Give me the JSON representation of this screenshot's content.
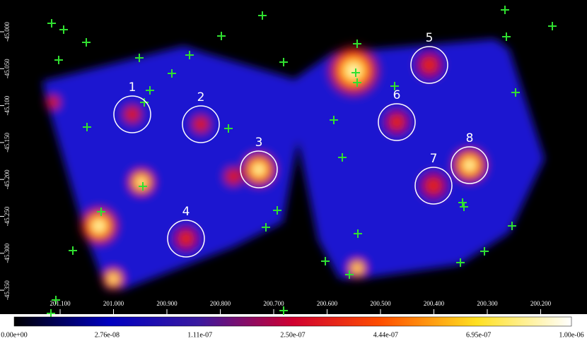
{
  "image": {
    "x_axis": {
      "ticks": [
        "201.100",
        "201.000",
        "200.900",
        "200.800",
        "200.700",
        "200.600",
        "200.500",
        "200.400",
        "200.300",
        "200.200"
      ]
    },
    "y_axis": {
      "ticks": [
        "-45.000",
        "-45.050",
        "-45.100",
        "-45.150",
        "-45.200",
        "-45.250",
        "-45.300",
        "-45.350"
      ]
    },
    "sources": [
      "1",
      "2",
      "3",
      "4",
      "5",
      "6",
      "7",
      "8"
    ],
    "colorbar": {
      "labels": [
        "0.00e+00",
        "2.76e-08",
        "1.11e-07",
        "2.50e-07",
        "4.44e-07",
        "6.95e-07",
        "1.00e-06"
      ]
    }
  }
}
